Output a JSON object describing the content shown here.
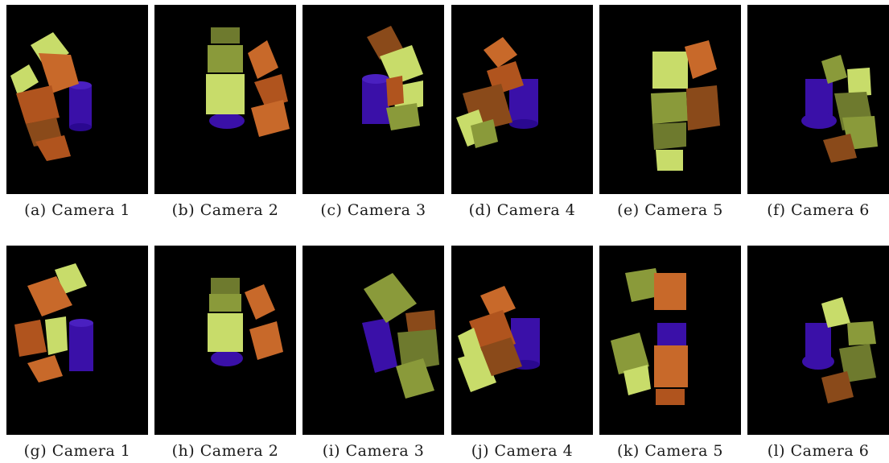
{
  "panels": [
    {
      "letter": "(a)",
      "label": "Camera 1"
    },
    {
      "letter": "(b)",
      "label": "Camera 2"
    },
    {
      "letter": "(c)",
      "label": "Camera 3"
    },
    {
      "letter": "(d)",
      "label": "Camera 4"
    },
    {
      "letter": "(e)",
      "label": "Camera 5"
    },
    {
      "letter": "(f)",
      "label": "Camera 6"
    },
    {
      "letter": "(g)",
      "label": "Camera 1"
    },
    {
      "letter": "(h)",
      "label": "Camera 2"
    },
    {
      "letter": "(i)",
      "label": "Camera 3"
    },
    {
      "letter": "(j)",
      "label": "Camera 4"
    },
    {
      "letter": "(k)",
      "label": "Camera 5"
    },
    {
      "letter": "(l)",
      "label": "Camera 6"
    }
  ],
  "colors": {
    "background": "#000000",
    "cube_orange": "#c8692a",
    "cube_green": "#c8dc6a",
    "cylinder_purple": "#3a10a8"
  }
}
